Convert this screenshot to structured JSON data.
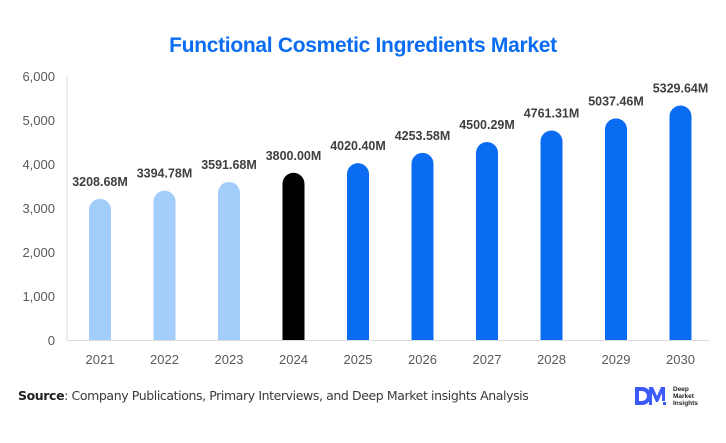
{
  "chart_data": {
    "type": "bar",
    "title": "Functional Cosmetic Ingredients Market",
    "xlabel": "",
    "ylabel": "",
    "ylim": [
      0,
      6000
    ],
    "yticks": [
      0,
      1000,
      2000,
      3000,
      4000,
      5000,
      6000
    ],
    "ytick_labels": [
      "0",
      "1,000",
      "2,000",
      "3,000",
      "4,000",
      "5,000",
      "6,000"
    ],
    "categories": [
      "2021",
      "2022",
      "2023",
      "2024",
      "2025",
      "2026",
      "2027",
      "2028",
      "2029",
      "2030"
    ],
    "values": [
      3208.68,
      3394.78,
      3591.68,
      3800.0,
      4020.4,
      4253.58,
      4500.29,
      4761.31,
      5037.46,
      5329.64
    ],
    "value_labels": [
      "3208.68M",
      "3394.78M",
      "3591.68M",
      "3800.00M",
      "4020.40M",
      "4253.58M",
      "4500.29M",
      "4761.31M",
      "5037.46M",
      "5329.64M"
    ],
    "bar_colors": [
      "#a3cdfb",
      "#a3cdfb",
      "#a3cdfb",
      "#000000",
      "#0a6cf2",
      "#0a6cf2",
      "#0a6cf2",
      "#0a6cf2",
      "#0a6cf2",
      "#0a6cf2"
    ],
    "grid": false,
    "legend": null
  },
  "colors": {
    "title": "#0a6cf2",
    "historical": "#a3cdfb",
    "base_year": "#000000",
    "forecast": "#0a6cf2"
  },
  "footer": {
    "source_label": "Source",
    "source_text": ": Company Publications, Primary Interviews, and Deep Market insights Analysis"
  },
  "logo": {
    "mark": "DM",
    "line1": "Deep",
    "line2": "Market",
    "line3": "Insights"
  }
}
